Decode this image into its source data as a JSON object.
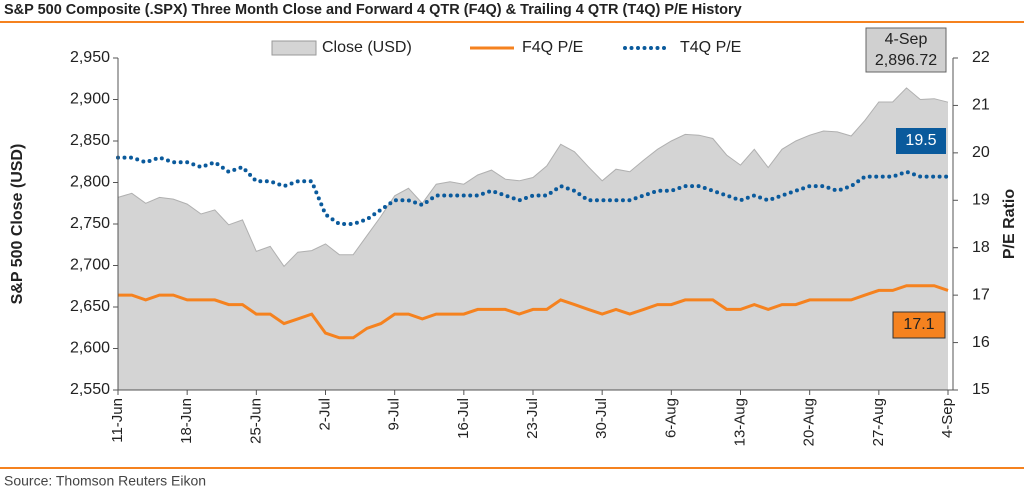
{
  "chart_data": {
    "type": "area_line",
    "title": "S&P 500 Composite (.SPX) Three Month Close and Forward 4 QTR (F4Q) & Trailing 4 QTR (T4Q) P/E History",
    "source": "Source: Thomson Reuters Eikon",
    "ylabel": "S&P 500 Close (USD)",
    "y2label": "P/E Ratio",
    "categories": [
      "11-Jun",
      null,
      null,
      null,
      null,
      "18-Jun",
      null,
      null,
      null,
      null,
      "25-Jun",
      null,
      null,
      null,
      null,
      "2-Jul",
      null,
      null,
      null,
      null,
      "9-Jul",
      null,
      null,
      null,
      null,
      "16-Jul",
      null,
      null,
      null,
      null,
      "23-Jul",
      null,
      null,
      null,
      null,
      "30-Jul",
      null,
      null,
      null,
      null,
      "6-Aug",
      null,
      null,
      null,
      null,
      "13-Aug",
      null,
      null,
      null,
      null,
      "20-Aug",
      null,
      null,
      null,
      null,
      "27-Aug",
      null,
      null,
      null,
      null,
      "4-Sep"
    ],
    "series": [
      {
        "name": "Close (USD)",
        "color": "#d4d4d4",
        "style": "area",
        "axis": "y",
        "values": [
          2782,
          2787,
          2775,
          2782,
          2780,
          2774,
          2762,
          2767,
          2749,
          2755,
          2717,
          2723,
          2699,
          2716,
          2718,
          2726,
          2713,
          2713,
          2736,
          2759,
          2784,
          2793,
          2775,
          2798,
          2801,
          2798,
          2809,
          2815,
          2804,
          2802,
          2806,
          2820,
          2846,
          2837,
          2819,
          2802,
          2816,
          2813,
          2827,
          2840,
          2850,
          2858,
          2857,
          2853,
          2833,
          2821,
          2840,
          2818,
          2840,
          2850,
          2857,
          2862,
          2861,
          2856,
          2875,
          2897,
          2897,
          2914,
          2900,
          2901,
          2896.72
        ]
      },
      {
        "name": "F4Q P/E",
        "color": "#f5821f",
        "style": "solid",
        "axis": "y2",
        "values": [
          17.0,
          17.0,
          16.9,
          17.0,
          17.0,
          16.9,
          16.9,
          16.9,
          16.8,
          16.8,
          16.6,
          16.6,
          16.4,
          16.5,
          16.6,
          16.2,
          16.1,
          16.1,
          16.3,
          16.4,
          16.6,
          16.6,
          16.5,
          16.6,
          16.6,
          16.6,
          16.7,
          16.7,
          16.7,
          16.6,
          16.7,
          16.7,
          16.9,
          16.8,
          16.7,
          16.6,
          16.7,
          16.6,
          16.7,
          16.8,
          16.8,
          16.9,
          16.9,
          16.9,
          16.7,
          16.7,
          16.8,
          16.7,
          16.8,
          16.8,
          16.9,
          16.9,
          16.9,
          16.9,
          17.0,
          17.1,
          17.1,
          17.2,
          17.2,
          17.2,
          17.1
        ]
      },
      {
        "name": "T4Q P/E",
        "color": "#0a5a9c",
        "style": "dotted",
        "axis": "y2",
        "values": [
          19.9,
          19.9,
          19.8,
          19.9,
          19.8,
          19.8,
          19.7,
          19.8,
          19.6,
          19.7,
          19.4,
          19.4,
          19.3,
          19.4,
          19.4,
          18.7,
          18.5,
          18.5,
          18.6,
          18.8,
          19.0,
          19.0,
          18.9,
          19.1,
          19.1,
          19.1,
          19.1,
          19.2,
          19.1,
          19.0,
          19.1,
          19.1,
          19.3,
          19.2,
          19.0,
          19.0,
          19.0,
          19.0,
          19.1,
          19.2,
          19.2,
          19.3,
          19.3,
          19.2,
          19.1,
          19.0,
          19.1,
          19.0,
          19.1,
          19.2,
          19.3,
          19.3,
          19.2,
          19.3,
          19.5,
          19.5,
          19.5,
          19.6,
          19.5,
          19.5,
          19.5
        ]
      }
    ],
    "annotations": [
      [
        "4-Sep",
        "2,896.72"
      ],
      "19.5",
      "17.1"
    ],
    "ylim": [
      2550,
      2950
    ],
    "yticks": [
      {
        "value": 2550,
        "label": "2,550"
      },
      {
        "value": 2600,
        "label": "2,600"
      },
      {
        "value": 2650,
        "label": "2,650"
      },
      {
        "value": 2700,
        "label": "2,700"
      },
      {
        "value": 2750,
        "label": "2,750"
      },
      {
        "value": 2800,
        "label": "2,800"
      },
      {
        "value": 2850,
        "label": "2,850"
      },
      {
        "value": 2900,
        "label": "2,900"
      },
      {
        "value": 2950,
        "label": "2,950"
      }
    ],
    "y2lim": [
      15,
      22
    ],
    "y2ticks": [
      15,
      16,
      17,
      18,
      19,
      20,
      21,
      22
    ],
    "grid": false,
    "legend": "top"
  }
}
